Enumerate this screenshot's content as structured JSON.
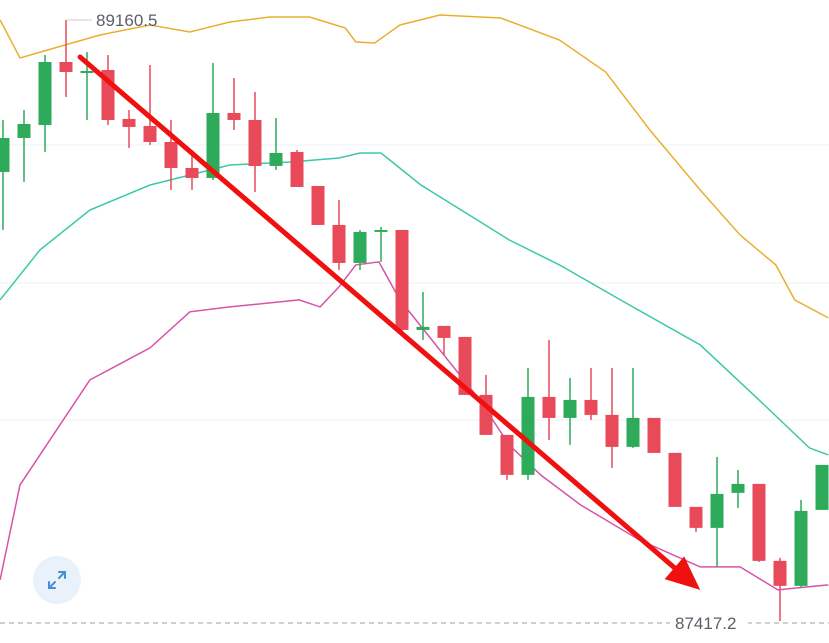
{
  "chart_data": {
    "type": "candlestick",
    "title": "",
    "xlabel": "",
    "ylabel": "",
    "ylim": [
      87417.2,
      89160.5
    ],
    "grid": true,
    "colors": {
      "up": "#2eab5a",
      "down": "#e84a5a",
      "upper_band": "#e8b030",
      "middle_band": "#3cc8a8",
      "lower_band": "#d654a8",
      "arrow": "#f01010"
    },
    "max_label": "89160.5",
    "min_label": "87417.2",
    "candles": [
      {
        "o": 88719.7,
        "h": 88870.5,
        "l": 88551.5,
        "c": 88818.3
      },
      {
        "o": 88818.3,
        "h": 88899.5,
        "l": 88690.7,
        "c": 88858.9
      },
      {
        "o": 88856.0,
        "h": 89059.0,
        "l": 88777.7,
        "c": 89038.7
      },
      {
        "o": 89038.7,
        "h": 89160.5,
        "l": 88937.2,
        "c": 89009.7
      },
      {
        "o": 89006.8,
        "h": 89067.7,
        "l": 88870.5,
        "c": 89012.6
      },
      {
        "o": 89015.5,
        "h": 89059.0,
        "l": 88856.0,
        "c": 88870.5
      },
      {
        "o": 88873.4,
        "h": 88899.5,
        "l": 88789.3,
        "c": 88850.2
      },
      {
        "o": 88853.1,
        "h": 89030.0,
        "l": 88798.0,
        "c": 88806.7
      },
      {
        "o": 88806.7,
        "h": 88870.5,
        "l": 88667.5,
        "c": 88731.3
      },
      {
        "o": 88731.3,
        "h": 88783.5,
        "l": 88667.5,
        "c": 88702.3
      },
      {
        "o": 88702.3,
        "h": 89035.8,
        "l": 88696.5,
        "c": 88890.8
      },
      {
        "o": 88890.8,
        "h": 88992.3,
        "l": 88841.5,
        "c": 88870.5
      },
      {
        "o": 88870.5,
        "h": 88951.7,
        "l": 88661.7,
        "c": 88737.1
      },
      {
        "o": 88737.1,
        "h": 88876.3,
        "l": 88725.5,
        "c": 88774.8
      },
      {
        "o": 88777.7,
        "h": 88783.5,
        "l": 88676.2,
        "c": 88676.2
      },
      {
        "o": 88679.1,
        "h": 88679.1,
        "l": 88566.0,
        "c": 88566.0
      },
      {
        "o": 88566.0,
        "h": 88638.5,
        "l": 88435.5,
        "c": 88455.8
      },
      {
        "o": 88455.8,
        "h": 88551.5,
        "l": 88435.5,
        "c": 88545.7
      },
      {
        "o": 88545.7,
        "h": 88560.2,
        "l": 88458.7,
        "c": 88551.5
      },
      {
        "o": 88551.5,
        "h": 88551.5,
        "l": 88255.7,
        "c": 88261.5
      },
      {
        "o": 88261.5,
        "h": 88371.7,
        "l": 88232.5,
        "c": 88270.2
      },
      {
        "o": 88273.1,
        "h": 88273.1,
        "l": 88189.0,
        "c": 88238.3
      },
      {
        "o": 88241.2,
        "h": 88241.2,
        "l": 88073.0,
        "c": 88073.0
      },
      {
        "o": 88073.0,
        "h": 88131.0,
        "l": 87957.0,
        "c": 87957.0
      },
      {
        "o": 87957.0,
        "h": 87957.0,
        "l": 87826.5,
        "c": 87841.0
      },
      {
        "o": 87841.0,
        "h": 88151.3,
        "l": 87826.5,
        "c": 88067.2
      },
      {
        "o": 88067.2,
        "h": 88232.5,
        "l": 87942.5,
        "c": 88006.3
      },
      {
        "o": 88006.3,
        "h": 88122.3,
        "l": 87928.0,
        "c": 88058.5
      },
      {
        "o": 88058.5,
        "h": 88151.3,
        "l": 88000.5,
        "c": 88015.0
      },
      {
        "o": 88015.0,
        "h": 88151.3,
        "l": 87861.3,
        "c": 87922.2
      },
      {
        "o": 87922.2,
        "h": 88151.3,
        "l": 87919.3,
        "c": 88006.3
      },
      {
        "o": 88006.3,
        "h": 88006.3,
        "l": 87904.8,
        "c": 87904.8
      },
      {
        "o": 87904.8,
        "h": 87904.8,
        "l": 87748.2,
        "c": 87748.2
      },
      {
        "o": 87748.2,
        "h": 87748.2,
        "l": 87675.7,
        "c": 87687.3
      },
      {
        "o": 87687.3,
        "h": 87893.2,
        "l": 87574.2,
        "c": 87785.9
      },
      {
        "o": 87788.8,
        "h": 87855.5,
        "l": 87745.3,
        "c": 87814.9
      },
      {
        "o": 87814.9,
        "h": 87814.9,
        "l": 87588.7,
        "c": 87591.6
      },
      {
        "o": 87591.6,
        "h": 87600.3,
        "l": 87417.2,
        "c": 87519.1
      },
      {
        "o": 87519.1,
        "h": 87768.5,
        "l": 87513.3,
        "c": 87736.6
      },
      {
        "o": 87739.5,
        "h": 87870.0,
        "l": 87739.5,
        "c": 87870.0
      }
    ],
    "bands": {
      "upper": [
        [
          -0.14,
          89160.5
        ],
        [
          0.81,
          89050.3
        ],
        [
          2.95,
          89088
        ],
        [
          4.62,
          89117
        ],
        [
          7,
          89146
        ],
        [
          8.9,
          89125.7
        ],
        [
          10.8,
          89154.7
        ],
        [
          12.7,
          89169.2
        ],
        [
          14.6,
          89169.2
        ],
        [
          16.3,
          89137.3
        ],
        [
          16.8,
          89096.7
        ],
        [
          17.7,
          89093.8
        ],
        [
          18.9,
          89146
        ],
        [
          20.8,
          89175
        ],
        [
          23.7,
          89166.3
        ],
        [
          26.5,
          89102.5
        ],
        [
          28.7,
          89009.7
        ],
        [
          30.8,
          88841.5
        ],
        [
          33.2,
          88667.5
        ],
        [
          35.1,
          88537
        ],
        [
          36.8,
          88450
        ],
        [
          37.7,
          88348.5
        ],
        [
          39.3,
          88296.3
        ]
      ],
      "middle": [
        [
          -0.14,
          88348.5
        ],
        [
          1.76,
          88493.5
        ],
        [
          4.14,
          88609.5
        ],
        [
          7,
          88682
        ],
        [
          10.8,
          88740
        ],
        [
          13.7,
          88748.7
        ],
        [
          16.0,
          88760.3
        ],
        [
          17.0,
          88774.8
        ],
        [
          18.0,
          88774.8
        ],
        [
          19.9,
          88682
        ],
        [
          22.2,
          88595
        ],
        [
          24.1,
          88522.5
        ],
        [
          26.5,
          88450
        ],
        [
          29.4,
          88348.5
        ],
        [
          33.2,
          88218
        ],
        [
          36.0,
          88058.5
        ],
        [
          38.4,
          87919.3
        ],
        [
          39.3,
          87899
        ]
      ],
      "lower": [
        [
          -0.14,
          87536.5
        ],
        [
          0.81,
          87812
        ],
        [
          4.14,
          88116.5
        ],
        [
          7,
          88209.3
        ],
        [
          8.9,
          88314
        ],
        [
          10.8,
          88328.2
        ],
        [
          14.1,
          88348.5
        ],
        [
          15.1,
          88328.2
        ],
        [
          16.0,
          88386.2
        ],
        [
          16.8,
          88450
        ],
        [
          17.9,
          88458.7
        ],
        [
          18.9,
          88348.5
        ],
        [
          20.8,
          88203.5
        ],
        [
          22.7,
          88058.5
        ],
        [
          24.1,
          87928
        ],
        [
          25.6,
          87841
        ],
        [
          27.5,
          87754
        ],
        [
          30.3,
          87652.5
        ],
        [
          33.2,
          87574.2
        ],
        [
          35.1,
          87574.2
        ],
        [
          36.9,
          87507.5
        ],
        [
          38.3,
          87516.2
        ],
        [
          39.3,
          87522
        ]
      ]
    },
    "annotation_arrow": {
      "from": [
        3.67,
        89053.2
      ],
      "to": [
        33.2,
        87507.5
      ]
    }
  },
  "controls": {
    "expand_icon": "expand-arrows-icon"
  }
}
